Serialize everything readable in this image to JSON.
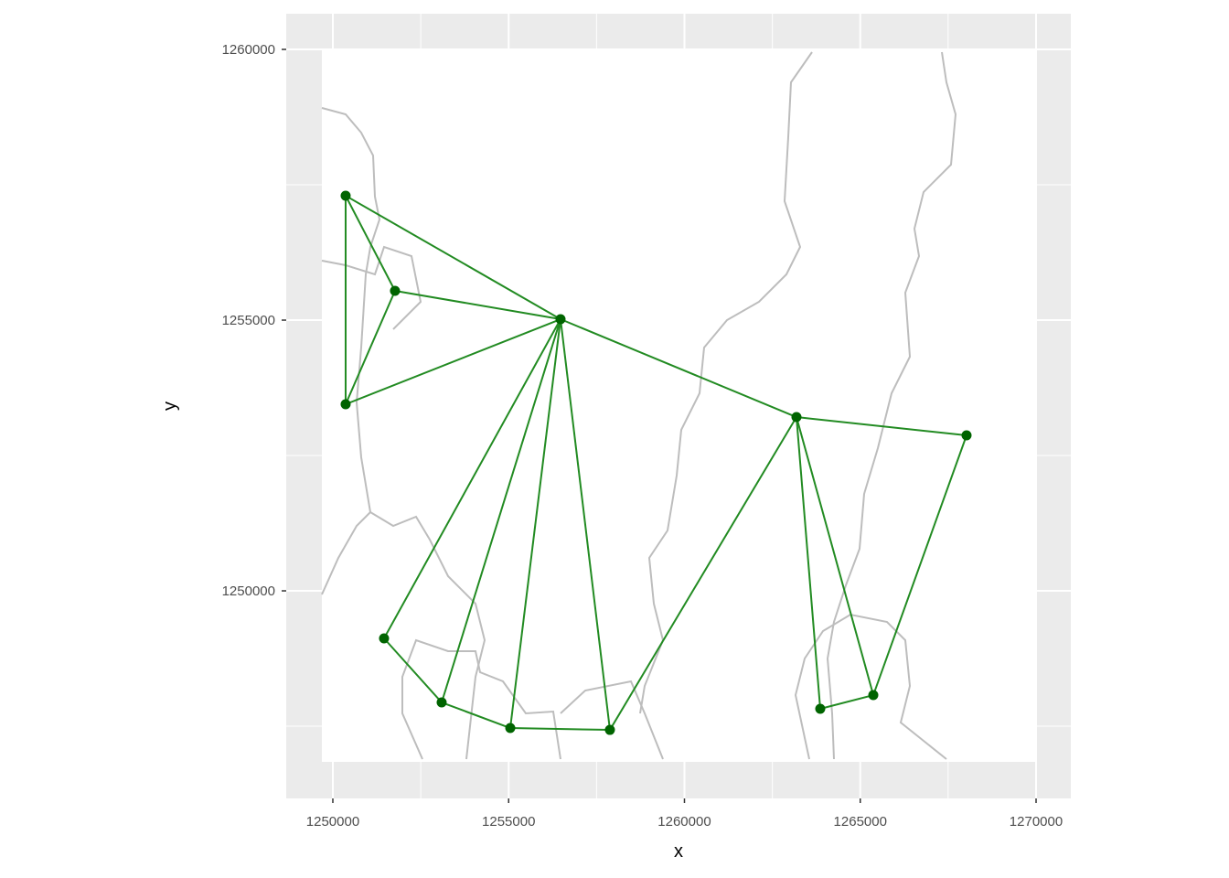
{
  "chart_data": {
    "type": "network",
    "x_label": "x",
    "y_label": "y",
    "xlim": [
      1248674,
      1270988
    ],
    "ylim": [
      1246166,
      1260659
    ],
    "xticks": [
      1250000,
      1255000,
      1260000,
      1265000,
      1270000
    ],
    "yticks": [
      1250000,
      1255000,
      1260000
    ],
    "grid": true,
    "point_color": "#006400",
    "edge_color": "#228b22",
    "x": [
      1250364,
      1251768,
      1256476,
      1250364,
      1263186,
      1268023,
      1251456,
      1253095,
      1255046,
      1257880,
      1263862,
      1265371
    ],
    "y": [
      1257297,
      1255541,
      1255017,
      1253446,
      1253209,
      1252872,
      1249122,
      1247939,
      1247466,
      1247432,
      1247821,
      1248074
    ],
    "edges": [
      [
        0,
        1
      ],
      [
        0,
        2
      ],
      [
        0,
        3
      ],
      [
        1,
        2
      ],
      [
        1,
        3
      ],
      [
        2,
        3
      ],
      [
        2,
        4
      ],
      [
        2,
        6
      ],
      [
        2,
        7
      ],
      [
        2,
        8
      ],
      [
        2,
        9
      ],
      [
        6,
        7
      ],
      [
        7,
        8
      ],
      [
        8,
        9
      ],
      [
        9,
        4
      ],
      [
        4,
        5
      ],
      [
        4,
        10
      ],
      [
        4,
        11
      ],
      [
        5,
        11
      ],
      [
        10,
        11
      ]
    ]
  }
}
